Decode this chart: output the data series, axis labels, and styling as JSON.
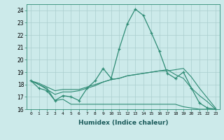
{
  "xlabel": "Humidex (Indice chaleur)",
  "x_values": [
    0,
    1,
    2,
    3,
    4,
    5,
    6,
    7,
    8,
    9,
    10,
    11,
    12,
    13,
    14,
    15,
    16,
    17,
    18,
    19,
    20,
    21,
    22,
    23
  ],
  "line1": [
    18.3,
    17.7,
    17.5,
    16.7,
    17.1,
    17.0,
    16.7,
    17.7,
    18.3,
    19.3,
    18.5,
    20.9,
    22.9,
    24.1,
    23.6,
    22.2,
    20.7,
    18.9,
    18.5,
    19.0,
    17.7,
    16.5,
    16.1,
    16.0
  ],
  "line2": [
    18.3,
    18.0,
    17.6,
    17.2,
    17.4,
    17.4,
    17.5,
    17.7,
    17.9,
    18.2,
    18.4,
    18.5,
    18.7,
    18.8,
    18.9,
    19.0,
    19.1,
    19.1,
    19.2,
    19.3,
    18.6,
    17.7,
    16.9,
    16.1
  ],
  "line3": [
    18.3,
    18.0,
    17.7,
    16.7,
    16.8,
    16.4,
    16.4,
    16.4,
    16.4,
    16.4,
    16.4,
    16.4,
    16.4,
    16.4,
    16.4,
    16.4,
    16.4,
    16.4,
    16.4,
    16.2,
    16.1,
    16.0,
    16.0,
    16.0
  ],
  "line4": [
    18.3,
    18.1,
    17.8,
    17.5,
    17.6,
    17.6,
    17.6,
    17.8,
    18.0,
    18.2,
    18.4,
    18.5,
    18.7,
    18.8,
    18.9,
    19.0,
    19.1,
    19.2,
    18.8,
    18.5,
    17.7,
    17.1,
    16.6,
    16.0
  ],
  "line_color": "#2e8b74",
  "bg_color": "#cceaea",
  "grid_color": "#aacece",
  "ylim": [
    16,
    24.5
  ],
  "yticks": [
    16,
    17,
    18,
    19,
    20,
    21,
    22,
    23,
    24
  ],
  "xtick_labels": [
    "0",
    "1",
    "2",
    "3",
    "4",
    "5",
    "6",
    "7",
    "8",
    "9",
    "10",
    "11",
    "12",
    "13",
    "14",
    "15",
    "16",
    "17",
    "18",
    "19",
    "20",
    "21",
    "22",
    "23"
  ]
}
